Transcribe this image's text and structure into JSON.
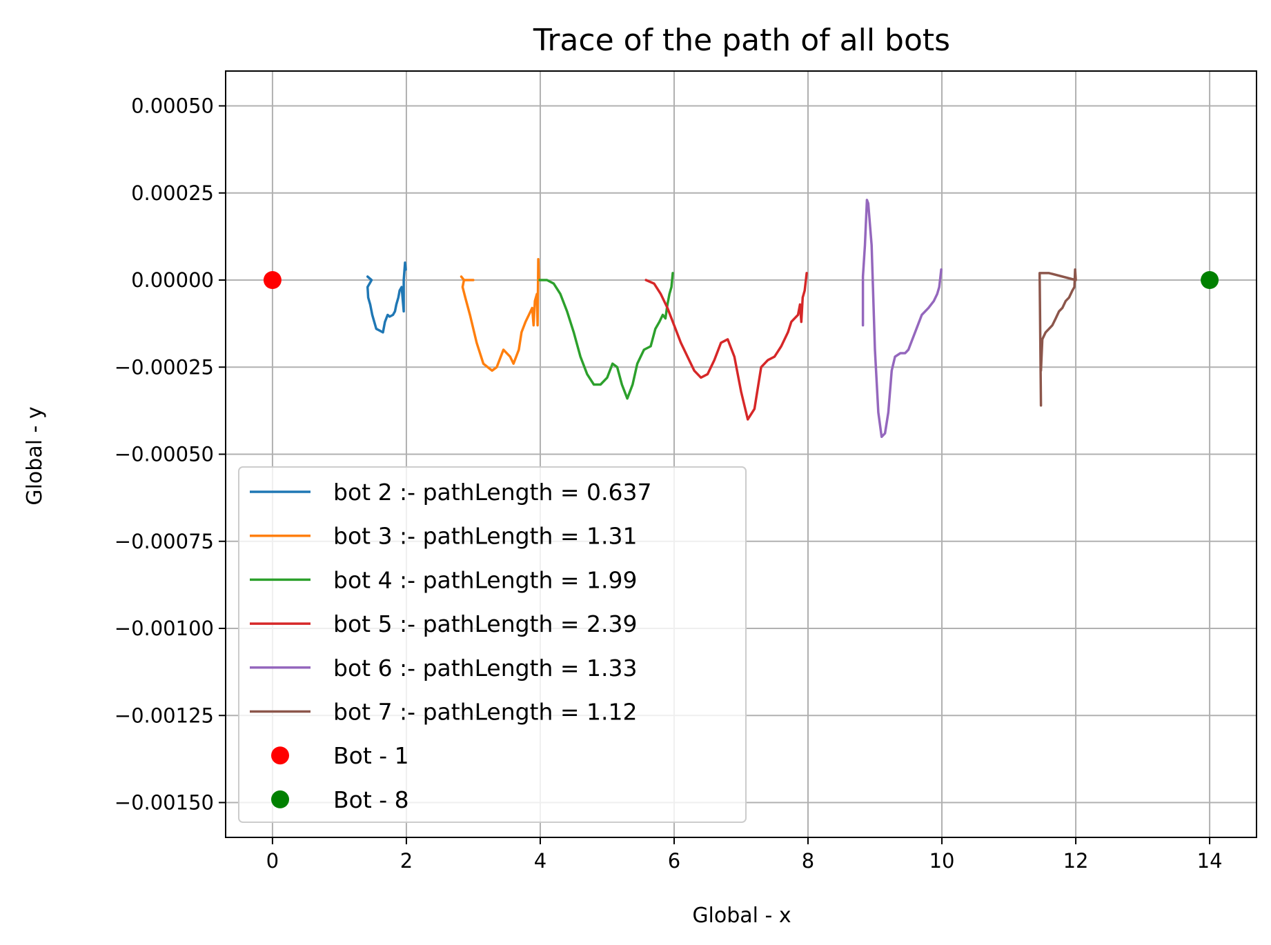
{
  "chart_data": {
    "type": "line",
    "title": "Trace of the path of all bots",
    "xlabel": "Global - x",
    "ylabel": "Global - y",
    "xlim": [
      -0.7,
      14.7
    ],
    "ylim": [
      -0.0016,
      0.0006
    ],
    "grid": true,
    "legend_position": "lower-left",
    "xticks": [
      0,
      2,
      4,
      6,
      8,
      10,
      12,
      14
    ],
    "xtick_labels": [
      "0",
      "2",
      "4",
      "6",
      "8",
      "10",
      "12",
      "14"
    ],
    "yticks": [
      0.0005,
      0.00025,
      0.0,
      -0.00025,
      -0.0005,
      -0.00075,
      -0.001,
      -0.00125,
      -0.0015
    ],
    "ytick_labels": [
      "0.00050",
      "0.00025",
      "0.00000",
      "−0.00025",
      "−0.00050",
      "−0.00075",
      "−0.00100",
      "−0.00125",
      "−0.00150"
    ],
    "series": [
      {
        "name": "bot 2 :- pathLength = 0.637",
        "color": "#1f77b4",
        "kind": "line",
        "points": [
          [
            1.42,
            1e-05
          ],
          [
            1.48,
            0.0
          ],
          [
            1.45,
            -1e-05
          ],
          [
            1.42,
            -2e-05
          ],
          [
            1.43,
            -5e-05
          ],
          [
            1.46,
            -7e-05
          ],
          [
            1.49,
            -0.0001
          ],
          [
            1.52,
            -0.00012
          ],
          [
            1.55,
            -0.00014
          ],
          [
            1.6,
            -0.000145
          ],
          [
            1.65,
            -0.00015
          ],
          [
            1.68,
            -0.00012
          ],
          [
            1.72,
            -0.0001
          ],
          [
            1.75,
            -0.000105
          ],
          [
            1.8,
            -0.0001
          ],
          [
            1.83,
            -9e-05
          ],
          [
            1.85,
            -7e-05
          ],
          [
            1.88,
            -5e-05
          ],
          [
            1.9,
            -3e-05
          ],
          [
            1.93,
            -2e-05
          ],
          [
            1.96,
            -9e-05
          ],
          [
            1.96,
            0.0
          ],
          [
            1.98,
            5e-05
          ],
          [
            1.99,
            3e-05
          ]
        ]
      },
      {
        "name": "bot 3 :- pathLength = 1.31",
        "color": "#ff7f0e",
        "kind": "line",
        "points": [
          [
            2.82,
            1e-05
          ],
          [
            2.86,
            0.0
          ],
          [
            3.0,
            0.0
          ],
          [
            2.86,
            0.0
          ],
          [
            2.84,
            -2e-05
          ],
          [
            2.88,
            -5e-05
          ],
          [
            2.95,
            -0.0001
          ],
          [
            3.05,
            -0.00018
          ],
          [
            3.15,
            -0.00024
          ],
          [
            3.28,
            -0.00026
          ],
          [
            3.35,
            -0.00025
          ],
          [
            3.45,
            -0.0002
          ],
          [
            3.55,
            -0.00022
          ],
          [
            3.6,
            -0.00024
          ],
          [
            3.68,
            -0.0002
          ],
          [
            3.72,
            -0.00015
          ],
          [
            3.78,
            -0.00012
          ],
          [
            3.83,
            -0.0001
          ],
          [
            3.88,
            -8e-05
          ],
          [
            3.9,
            -0.00013
          ],
          [
            3.92,
            -6e-05
          ],
          [
            3.95,
            -4e-05
          ],
          [
            3.96,
            -0.00013
          ],
          [
            3.97,
            6e-05
          ],
          [
            3.98,
            0.0
          ]
        ]
      },
      {
        "name": "bot 4 :- pathLength = 1.99",
        "color": "#2ca02c",
        "kind": "line",
        "points": [
          [
            3.99,
            0.0
          ],
          [
            4.1,
            0.0
          ],
          [
            4.2,
            -1e-05
          ],
          [
            4.3,
            -4e-05
          ],
          [
            4.4,
            -9e-05
          ],
          [
            4.5,
            -0.00015
          ],
          [
            4.6,
            -0.00022
          ],
          [
            4.7,
            -0.00027
          ],
          [
            4.8,
            -0.0003
          ],
          [
            4.9,
            -0.0003
          ],
          [
            5.0,
            -0.00028
          ],
          [
            5.08,
            -0.00024
          ],
          [
            5.15,
            -0.00025
          ],
          [
            5.22,
            -0.0003
          ],
          [
            5.3,
            -0.00034
          ],
          [
            5.38,
            -0.0003
          ],
          [
            5.45,
            -0.00024
          ],
          [
            5.55,
            -0.0002
          ],
          [
            5.65,
            -0.00019
          ],
          [
            5.72,
            -0.00014
          ],
          [
            5.78,
            -0.00012
          ],
          [
            5.83,
            -0.0001
          ],
          [
            5.87,
            -0.00011
          ],
          [
            5.9,
            -7e-05
          ],
          [
            5.93,
            -4e-05
          ],
          [
            5.96,
            -2e-05
          ],
          [
            5.98,
            2e-05
          ]
        ]
      },
      {
        "name": "bot 5 :- pathLength = 2.39",
        "color": "#d62728",
        "kind": "line",
        "points": [
          [
            5.58,
            0.0
          ],
          [
            5.7,
            -1e-05
          ],
          [
            5.8,
            -4e-05
          ],
          [
            5.9,
            -8e-05
          ],
          [
            6.0,
            -0.00013
          ],
          [
            6.1,
            -0.00018
          ],
          [
            6.2,
            -0.00022
          ],
          [
            6.3,
            -0.00026
          ],
          [
            6.4,
            -0.00028
          ],
          [
            6.5,
            -0.00027
          ],
          [
            6.6,
            -0.00023
          ],
          [
            6.7,
            -0.00018
          ],
          [
            6.8,
            -0.00017
          ],
          [
            6.9,
            -0.00022
          ],
          [
            7.0,
            -0.00032
          ],
          [
            7.1,
            -0.0004
          ],
          [
            7.2,
            -0.00037
          ],
          [
            7.3,
            -0.00025
          ],
          [
            7.4,
            -0.00023
          ],
          [
            7.5,
            -0.00022
          ],
          [
            7.6,
            -0.00019
          ],
          [
            7.7,
            -0.00015
          ],
          [
            7.75,
            -0.00012
          ],
          [
            7.8,
            -0.00011
          ],
          [
            7.85,
            -0.0001
          ],
          [
            7.88,
            -7e-05
          ],
          [
            7.9,
            -0.00012
          ],
          [
            7.92,
            -5e-05
          ],
          [
            7.95,
            -3e-05
          ],
          [
            7.98,
            2e-05
          ]
        ]
      },
      {
        "name": "bot 6 :- pathLength = 1.33",
        "color": "#9467bd",
        "kind": "line",
        "points": [
          [
            8.82,
            -0.00013
          ],
          [
            8.82,
            1e-05
          ],
          [
            8.85,
            0.0001
          ],
          [
            8.88,
            0.00023
          ],
          [
            8.9,
            0.00022
          ],
          [
            8.95,
            0.0001
          ],
          [
            9.0,
            -0.0002
          ],
          [
            9.05,
            -0.00038
          ],
          [
            9.1,
            -0.00045
          ],
          [
            9.15,
            -0.00044
          ],
          [
            9.2,
            -0.00038
          ],
          [
            9.25,
            -0.00026
          ],
          [
            9.3,
            -0.00022
          ],
          [
            9.38,
            -0.00021
          ],
          [
            9.45,
            -0.00021
          ],
          [
            9.5,
            -0.0002
          ],
          [
            9.6,
            -0.00015
          ],
          [
            9.7,
            -0.0001
          ],
          [
            9.8,
            -8e-05
          ],
          [
            9.88,
            -6e-05
          ],
          [
            9.93,
            -4e-05
          ],
          [
            9.96,
            -2e-05
          ],
          [
            9.99,
            3e-05
          ]
        ]
      },
      {
        "name": "bot 7 :- pathLength = 1.12",
        "color": "#8c564b",
        "kind": "line",
        "points": [
          [
            11.48,
            -0.00036
          ],
          [
            11.46,
            2e-05
          ],
          [
            11.6,
            2e-05
          ],
          [
            12.0,
            0.0
          ],
          [
            11.99,
            3e-05
          ],
          [
            11.98,
            -2e-05
          ],
          [
            11.95,
            -3e-05
          ],
          [
            11.9,
            -5e-05
          ],
          [
            11.85,
            -6e-05
          ],
          [
            11.8,
            -8e-05
          ],
          [
            11.75,
            -9e-05
          ],
          [
            11.7,
            -0.00011
          ],
          [
            11.65,
            -0.00013
          ],
          [
            11.6,
            -0.00014
          ],
          [
            11.55,
            -0.00015
          ],
          [
            11.5,
            -0.00017
          ],
          [
            11.48,
            -0.00026
          ]
        ]
      },
      {
        "name": "Bot - 1",
        "color": "#ff0000",
        "kind": "marker",
        "points": [
          [
            0,
            0
          ]
        ]
      },
      {
        "name": "Bot - 8",
        "color": "#008000",
        "kind": "marker",
        "points": [
          [
            14,
            0
          ]
        ]
      }
    ]
  }
}
